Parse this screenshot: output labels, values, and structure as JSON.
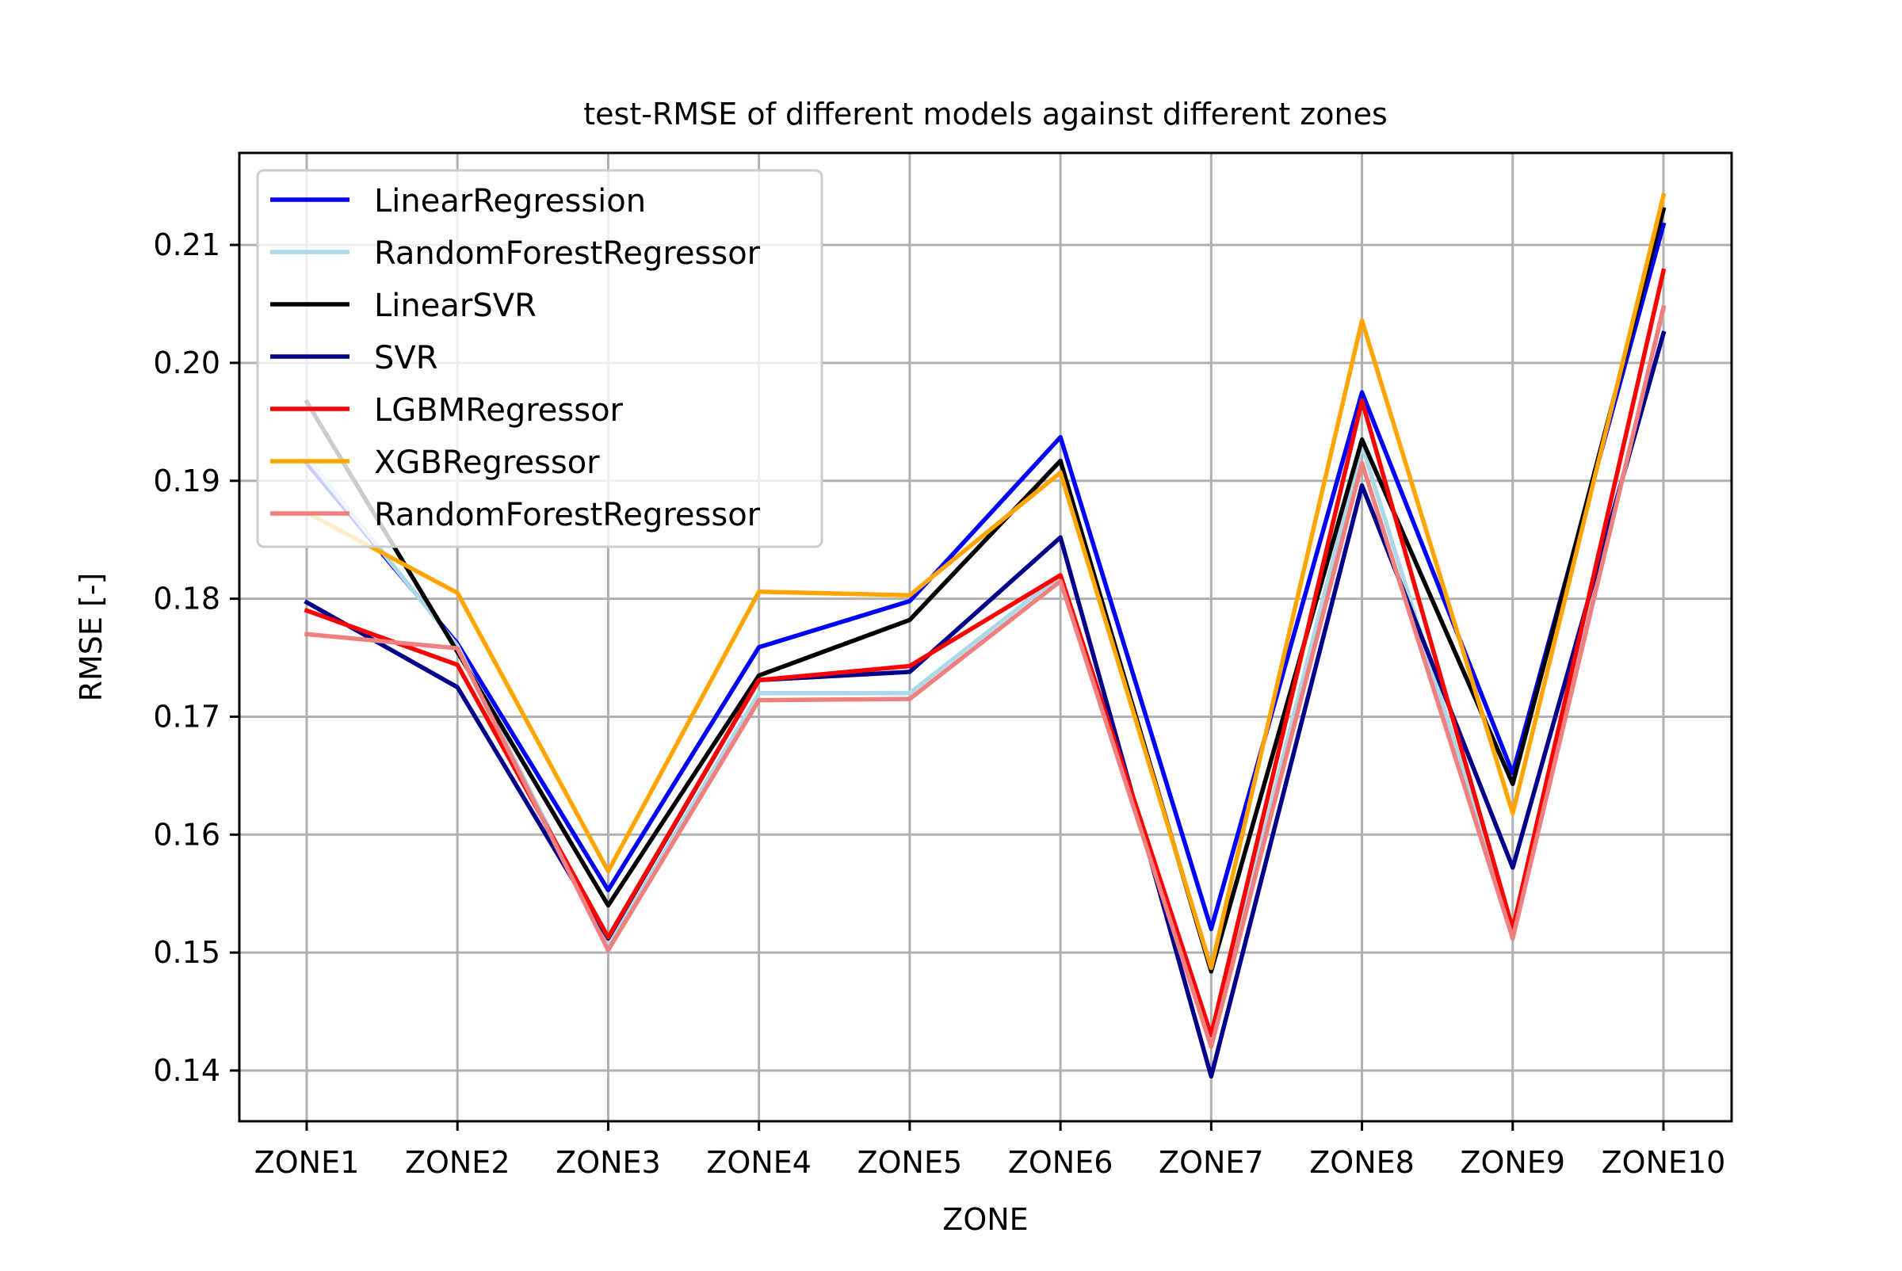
{
  "chart_data": {
    "type": "line",
    "title": "test-RMSE of different models against different zones",
    "xlabel": "ZONE",
    "ylabel": "RMSE [-]",
    "categories": [
      "ZONE1",
      "ZONE2",
      "ZONE3",
      "ZONE4",
      "ZONE5",
      "ZONE6",
      "ZONE7",
      "ZONE8",
      "ZONE9",
      "ZONE10"
    ],
    "ylim": [
      0.1357,
      0.2178
    ],
    "yticks": [
      0.14,
      0.15,
      0.16,
      0.17,
      0.18,
      0.19,
      0.2,
      0.21
    ],
    "ytick_labels": [
      "0.14",
      "0.15",
      "0.16",
      "0.17",
      "0.18",
      "0.19",
      "0.20",
      "0.21"
    ],
    "grid": true,
    "legend_position": "upper-left",
    "series": [
      {
        "name": "LinearRegression",
        "color": "#0000ff",
        "values": [
          0.1915,
          0.1762,
          0.1553,
          0.1759,
          0.1798,
          0.1937,
          0.152,
          0.1975,
          0.1652,
          0.2117
        ]
      },
      {
        "name": "RandomForestRegressor",
        "color": "#add8e6",
        "values": [
          0.192,
          0.176,
          0.1505,
          0.172,
          0.172,
          0.182,
          0.1425,
          0.193,
          0.152,
          0.2045
        ]
      },
      {
        "name": "LinearSVR",
        "color": "#000000",
        "values": [
          0.1967,
          0.1755,
          0.154,
          0.1735,
          0.1782,
          0.1917,
          0.1484,
          0.1935,
          0.1643,
          0.213
        ]
      },
      {
        "name": "SVR",
        "color": "#00008b",
        "values": [
          0.1797,
          0.1725,
          0.1512,
          0.1731,
          0.1738,
          0.1852,
          0.1395,
          0.1896,
          0.1572,
          0.2025
        ]
      },
      {
        "name": "LGBMRegressor",
        "color": "#ff0000",
        "values": [
          0.179,
          0.1744,
          0.1513,
          0.1731,
          0.1743,
          0.182,
          0.143,
          0.1968,
          0.152,
          0.2078
        ]
      },
      {
        "name": "XGBRegressor",
        "color": "#ffa500",
        "values": [
          0.1873,
          0.1805,
          0.1569,
          0.1806,
          0.1803,
          0.1907,
          0.1487,
          0.2036,
          0.1618,
          0.2142
        ]
      },
      {
        "name": "RandomForestRegressor",
        "color": "#f08080",
        "values": [
          0.177,
          0.1758,
          0.1502,
          0.1714,
          0.1715,
          0.1815,
          0.142,
          0.1915,
          0.1512,
          0.2047
        ]
      }
    ]
  }
}
